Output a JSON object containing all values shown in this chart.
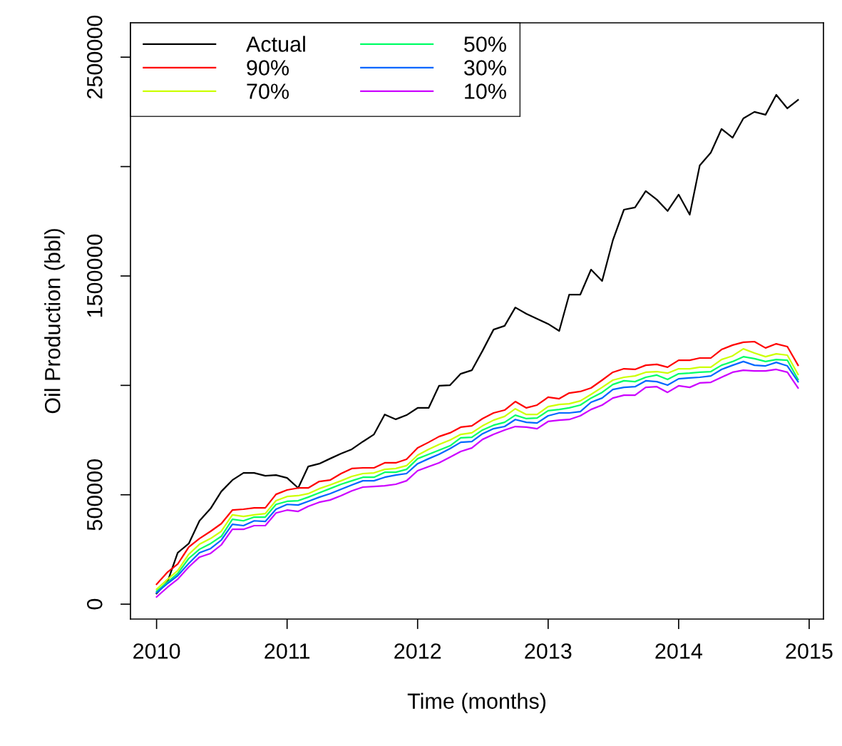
{
  "chart_data": {
    "type": "line",
    "xlabel": "Time (months)",
    "ylabel": "Oil Production (bbl)",
    "x": [
      "2010-01",
      "2010-02",
      "2010-03",
      "2010-04",
      "2010-05",
      "2010-06",
      "2010-07",
      "2010-08",
      "2010-09",
      "2010-10",
      "2010-11",
      "2010-12",
      "2011-01",
      "2011-02",
      "2011-03",
      "2011-04",
      "2011-05",
      "2011-06",
      "2011-07",
      "2011-08",
      "2011-09",
      "2011-10",
      "2011-11",
      "2011-12",
      "2012-01",
      "2012-02",
      "2012-03",
      "2012-04",
      "2012-05",
      "2012-06",
      "2012-07",
      "2012-08",
      "2012-09",
      "2012-10",
      "2012-11",
      "2012-12",
      "2013-01",
      "2013-02",
      "2013-03",
      "2013-04",
      "2013-05",
      "2013-06",
      "2013-07",
      "2013-08",
      "2013-09",
      "2013-10",
      "2013-11",
      "2013-12",
      "2014-01",
      "2014-02",
      "2014-03",
      "2014-04",
      "2014-05",
      "2014-06",
      "2014-07",
      "2014-08",
      "2014-09",
      "2014-10",
      "2014-11",
      "2014-12"
    ],
    "series": [
      {
        "name": "Actual",
        "color": "#000000",
        "values": [
          49000,
          104000,
          235000,
          277000,
          381000,
          437000,
          515000,
          567000,
          600000,
          600000,
          587000,
          590000,
          577000,
          531000,
          629000,
          642000,
          665000,
          688000,
          708000,
          743000,
          776000,
          867000,
          845000,
          864000,
          897000,
          897000,
          998000,
          1001000,
          1053000,
          1069000,
          1158000,
          1255000,
          1272000,
          1356000,
          1327000,
          1304000,
          1281000,
          1249000,
          1415000,
          1415000,
          1529000,
          1477000,
          1663000,
          1803000,
          1813000,
          1888000,
          1849000,
          1797000,
          1872000,
          1780000,
          2005000,
          2064000,
          2172000,
          2132000,
          2220000,
          2250000,
          2237000,
          2328000,
          2266000,
          2305000
        ]
      },
      {
        "name": "90%",
        "color": "#ff0000",
        "values": [
          91000,
          147000,
          183000,
          261000,
          300000,
          333000,
          368000,
          430000,
          434000,
          440000,
          440000,
          502000,
          522000,
          531000,
          531000,
          561000,
          567000,
          597000,
          620000,
          623000,
          623000,
          646000,
          646000,
          662000,
          714000,
          740000,
          766000,
          783000,
          809000,
          815000,
          848000,
          874000,
          887000,
          926000,
          897000,
          910000,
          946000,
          939000,
          965000,
          972000,
          988000,
          1024000,
          1060000,
          1076000,
          1073000,
          1092000,
          1096000,
          1083000,
          1115000,
          1115000,
          1125000,
          1125000,
          1164000,
          1184000,
          1197000,
          1200000,
          1171000,
          1190000,
          1177000,
          1092000
        ]
      },
      {
        "name": "70%",
        "color": "#ccff00",
        "values": [
          68000,
          114000,
          153000,
          228000,
          274000,
          300000,
          333000,
          408000,
          401000,
          408000,
          414000,
          473000,
          492000,
          496000,
          505000,
          528000,
          545000,
          564000,
          584000,
          597000,
          600000,
          616000,
          620000,
          633000,
          681000,
          708000,
          730000,
          750000,
          776000,
          783000,
          815000,
          841000,
          858000,
          893000,
          867000,
          867000,
          903000,
          913000,
          916000,
          929000,
          959000,
          991000,
          1024000,
          1037000,
          1043000,
          1060000,
          1063000,
          1056000,
          1076000,
          1076000,
          1083000,
          1083000,
          1118000,
          1135000,
          1167000,
          1148000,
          1131000,
          1144000,
          1138000,
          1050000
        ]
      },
      {
        "name": "50%",
        "color": "#00ff66",
        "values": [
          59000,
          101000,
          140000,
          209000,
          251000,
          277000,
          310000,
          388000,
          381000,
          398000,
          398000,
          456000,
          470000,
          473000,
          489000,
          509000,
          528000,
          548000,
          564000,
          580000,
          580000,
          603000,
          603000,
          616000,
          665000,
          685000,
          704000,
          724000,
          760000,
          763000,
          796000,
          818000,
          831000,
          864000,
          848000,
          851000,
          884000,
          890000,
          897000,
          910000,
          942000,
          968000,
          1004000,
          1021000,
          1017000,
          1037000,
          1047000,
          1027000,
          1053000,
          1056000,
          1060000,
          1063000,
          1092000,
          1109000,
          1131000,
          1122000,
          1109000,
          1118000,
          1115000,
          1027000
        ]
      },
      {
        "name": "30%",
        "color": "#0066ff",
        "values": [
          52000,
          95000,
          130000,
          186000,
          235000,
          254000,
          293000,
          365000,
          359000,
          381000,
          378000,
          434000,
          456000,
          453000,
          470000,
          489000,
          505000,
          525000,
          545000,
          564000,
          564000,
          580000,
          590000,
          597000,
          642000,
          665000,
          685000,
          711000,
          740000,
          743000,
          779000,
          802000,
          812000,
          844000,
          831000,
          828000,
          861000,
          874000,
          874000,
          880000,
          923000,
          942000,
          981000,
          991000,
          994000,
          1021000,
          1017000,
          1001000,
          1030000,
          1034000,
          1037000,
          1043000,
          1073000,
          1092000,
          1109000,
          1092000,
          1089000,
          1105000,
          1089000,
          1017000
        ]
      },
      {
        "name": "10%",
        "color": "#cc00ff",
        "values": [
          33000,
          78000,
          114000,
          170000,
          215000,
          232000,
          271000,
          342000,
          342000,
          359000,
          359000,
          417000,
          430000,
          424000,
          447000,
          466000,
          476000,
          496000,
          518000,
          535000,
          538000,
          541000,
          548000,
          564000,
          610000,
          629000,
          646000,
          672000,
          698000,
          714000,
          753000,
          776000,
          796000,
          812000,
          809000,
          802000,
          835000,
          841000,
          844000,
          861000,
          890000,
          910000,
          942000,
          955000,
          955000,
          991000,
          994000,
          968000,
          998000,
          991000,
          1011000,
          1014000,
          1037000,
          1060000,
          1069000,
          1066000,
          1066000,
          1073000,
          1060000,
          988000
        ]
      }
    ],
    "xlim": [
      "2009-10-20",
      "2015-02-10"
    ],
    "xticks": [
      "2010",
      "2011",
      "2012",
      "2013",
      "2014",
      "2015"
    ],
    "ylim": [
      -68000,
      2657000
    ],
    "yticks": [
      0,
      500000,
      {
        "value": 1000000,
        "label": null
      },
      1500000,
      {
        "value": 2000000,
        "label": null
      },
      2500000
    ],
    "legend": "top left",
    "grid": false,
    "marker": "none",
    "line_style": "solid"
  }
}
